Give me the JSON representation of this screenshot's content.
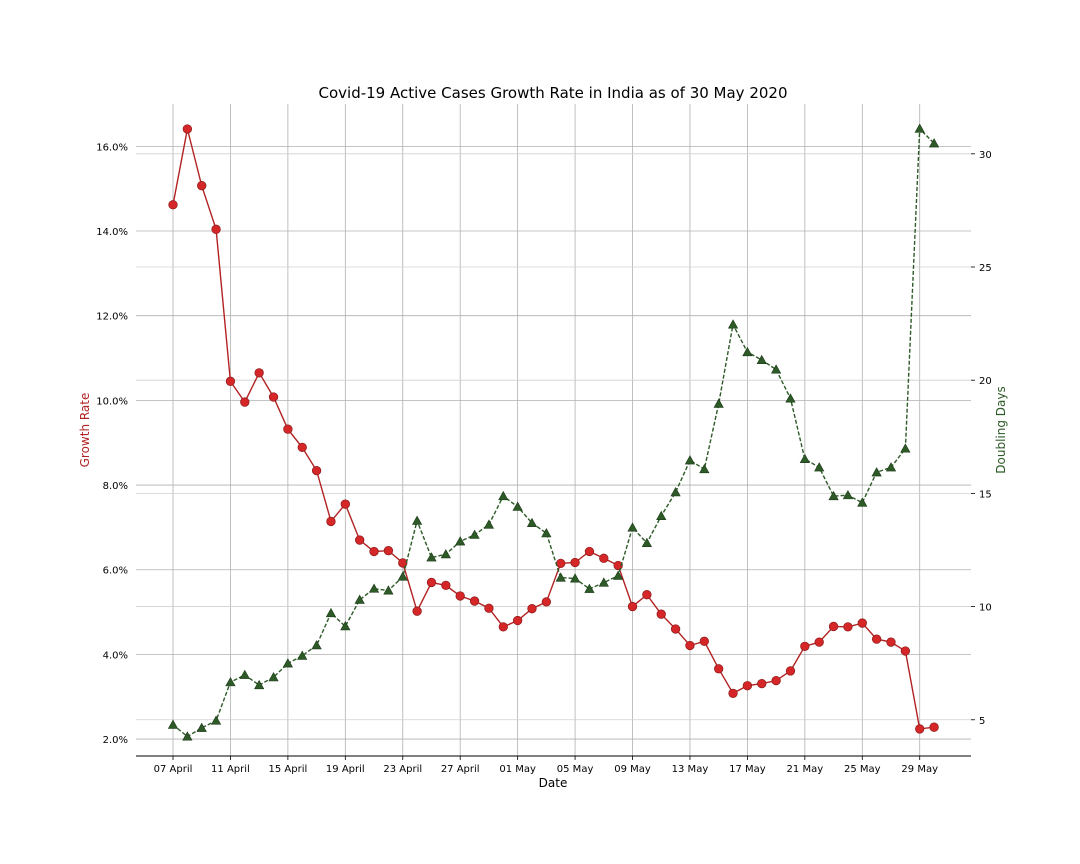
{
  "chart_data": {
    "type": "line",
    "title": "Covid-19 Active Cases Growth Rate in India as of 30 May 2020",
    "xlabel": "Date",
    "ylabel_left": "Growth Rate",
    "ylabel_right": "Doubling Days",
    "x_ticks": [
      "07 April",
      "11 April",
      "15 April",
      "19 April",
      "23 April",
      "27 April",
      "01 May",
      "05 May",
      "09 May",
      "13 May",
      "17 May",
      "21 May",
      "25 May",
      "29 May"
    ],
    "x_start": "2020-04-07",
    "x_end": "2020-05-30",
    "ylim_left": [
      1.6,
      17.0
    ],
    "ylim_right": [
      3.4,
      32.2
    ],
    "yticks_left": [
      "2.0%",
      "4.0%",
      "6.0%",
      "8.0%",
      "10.0%",
      "12.0%",
      "14.0%",
      "16.0%"
    ],
    "yticks_right": [
      5,
      10,
      15,
      20,
      25,
      30
    ],
    "grid": true,
    "series": [
      {
        "name": "Growth Rate",
        "axis": "left",
        "color": "#d62728",
        "line_color": "#b22222",
        "marker": "circle",
        "line_style": "solid",
        "values": [
          14.62,
          16.41,
          15.07,
          14.04,
          10.45,
          9.96,
          10.65,
          10.08,
          9.32,
          8.89,
          8.34,
          7.14,
          7.55,
          6.7,
          6.43,
          6.45,
          6.16,
          5.02,
          5.7,
          5.63,
          5.38,
          5.26,
          5.09,
          4.65,
          4.8,
          5.08,
          5.24,
          6.15,
          6.17,
          6.43,
          6.27,
          6.1,
          5.13,
          5.41,
          4.95,
          4.6,
          4.21,
          4.31,
          3.66,
          3.08,
          3.26,
          3.31,
          3.38,
          3.61,
          4.19,
          4.29,
          4.66,
          4.65,
          4.74,
          4.36,
          4.29,
          4.08,
          2.24,
          2.28
        ]
      },
      {
        "name": "Doubling Days",
        "axis": "right",
        "color": "#2d5a27",
        "line_color": "#2d5a27",
        "marker": "triangle",
        "line_style": "dashed",
        "values": [
          4.78,
          4.26,
          4.64,
          4.96,
          6.66,
          6.98,
          6.53,
          6.88,
          7.49,
          7.83,
          8.29,
          9.71,
          9.13,
          10.3,
          10.79,
          10.71,
          11.32,
          13.79,
          12.17,
          12.31,
          12.88,
          13.17,
          13.62,
          14.88,
          14.41,
          13.69,
          13.24,
          11.28,
          11.24,
          10.78,
          11.06,
          11.36,
          13.49,
          12.81,
          14.0,
          15.05,
          16.46,
          16.07,
          18.96,
          22.46,
          21.24,
          20.89,
          20.47,
          19.19,
          16.52,
          16.15,
          14.88,
          14.92,
          14.59,
          15.93,
          16.15,
          16.98,
          31.11,
          30.46
        ]
      }
    ]
  }
}
